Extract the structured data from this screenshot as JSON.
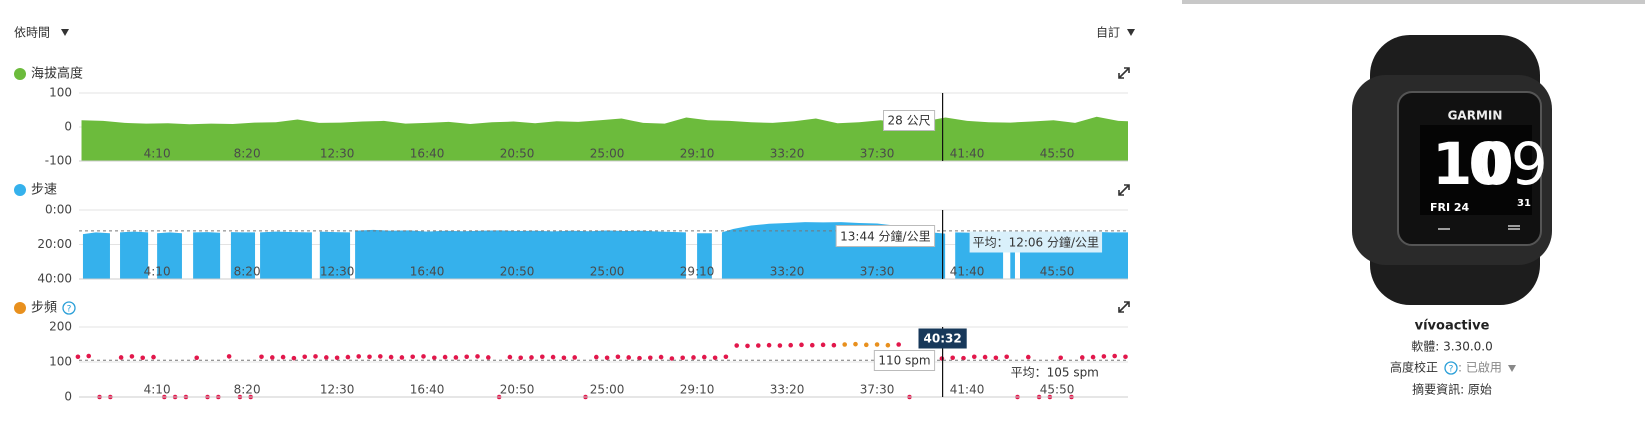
{
  "controls": {
    "sort": "依時間",
    "custom": "自訂"
  },
  "cursor": {
    "value": 2432,
    "label": "40:32"
  },
  "chart_data": [
    {
      "type": "area",
      "title": "海拔高度",
      "color": "#6cbb3c",
      "x": [
        40,
        100,
        160,
        220,
        280,
        340,
        400,
        460,
        520,
        580,
        640,
        700,
        760,
        820,
        880,
        940,
        1000,
        1060,
        1120,
        1180,
        1240,
        1300,
        1360,
        1420,
        1480,
        1540,
        1600,
        1660,
        1720,
        1780,
        1840,
        1900,
        1960,
        2020,
        2080,
        2140,
        2200,
        2260,
        2320,
        2380,
        2440,
        2500,
        2560,
        2620,
        2680,
        2740,
        2800,
        2860,
        2920,
        2947
      ],
      "values": [
        20,
        18,
        12,
        10,
        11,
        8,
        10,
        9,
        13,
        14,
        22,
        12,
        13,
        16,
        18,
        10,
        12,
        15,
        9,
        14,
        16,
        11,
        17,
        15,
        20,
        25,
        12,
        10,
        28,
        20,
        18,
        14,
        12,
        17,
        25,
        11,
        14,
        20,
        12,
        16,
        28,
        18,
        14,
        13,
        16,
        20,
        12,
        30,
        18,
        17
      ],
      "xlim": [
        33,
        2947
      ],
      "xticks": [
        {
          "value": 250,
          "label": "4:10"
        },
        {
          "value": 500,
          "label": "8:20"
        },
        {
          "value": 750,
          "label": "12:30"
        },
        {
          "value": 1000,
          "label": "16:40"
        },
        {
          "value": 1250,
          "label": "20:50"
        },
        {
          "value": 1500,
          "label": "25:00"
        },
        {
          "value": 1750,
          "label": "29:10"
        },
        {
          "value": 2000,
          "label": "33:20"
        },
        {
          "value": 2250,
          "label": "37:30"
        },
        {
          "value": 2500,
          "label": "41:40"
        },
        {
          "value": 2750,
          "label": "45:50"
        }
      ],
      "ylim": [
        -100,
        100
      ],
      "yticks": [
        -100,
        0,
        100
      ],
      "grid": true,
      "tooltip": "28 公尺"
    },
    {
      "type": "area",
      "title": "步速",
      "color": "#35b1ec",
      "y_reversed": true,
      "x": [
        44,
        80,
        119,
        133,
        147,
        185,
        225,
        238,
        250,
        285,
        319,
        335,
        350,
        390,
        425,
        440,
        455,
        490,
        522,
        529,
        536,
        580,
        630,
        680,
        690,
        702,
        745,
        786,
        793,
        800,
        850,
        900,
        950,
        1000,
        1050,
        1100,
        1150,
        1200,
        1250,
        1300,
        1350,
        1400,
        1450,
        1500,
        1550,
        1600,
        1650,
        1719,
        1735,
        1750,
        1791,
        1805,
        1819,
        1850,
        1900,
        1950,
        2000,
        2050,
        2100,
        2150,
        2200,
        2250,
        2300,
        2350,
        2400,
        2439,
        2453,
        2467,
        2520,
        2560,
        2600,
        2610,
        2620,
        2633,
        2640,
        2647,
        2700,
        2750,
        2800,
        2850,
        2900,
        2947
      ],
      "values": [
        14,
        13,
        13.5,
        null,
        13,
        12.5,
        13,
        null,
        13.5,
        13,
        13.5,
        null,
        13,
        12.8,
        13.2,
        null,
        12.8,
        13,
        13,
        null,
        13,
        12.5,
        12.8,
        13,
        null,
        12.5,
        12.8,
        13,
        null,
        12,
        11.5,
        12,
        11.8,
        12.5,
        12,
        12.3,
        12,
        11.8,
        12.2,
        12,
        12.4,
        12,
        12.3,
        11.9,
        12.2,
        12,
        12.5,
        13,
        null,
        13.5,
        13.5,
        null,
        13,
        11,
        9,
        8,
        7.5,
        7,
        7.2,
        7,
        7.5,
        7.8,
        9,
        11.5,
        13,
        13.7,
        null,
        13,
        13.2,
        13,
        13.4,
        null,
        15,
        15,
        null,
        13,
        13,
        12.8,
        13,
        12.7,
        13,
        13
      ],
      "xlim": [
        33,
        2947
      ],
      "xticks": [
        {
          "value": 250,
          "label": "4:10"
        },
        {
          "value": 500,
          "label": "8:20"
        },
        {
          "value": 750,
          "label": "12:30"
        },
        {
          "value": 1000,
          "label": "16:40"
        },
        {
          "value": 1250,
          "label": "20:50"
        },
        {
          "value": 1500,
          "label": "25:00"
        },
        {
          "value": 1750,
          "label": "29:10"
        },
        {
          "value": 2000,
          "label": "33:20"
        },
        {
          "value": 2250,
          "label": "37:30"
        },
        {
          "value": 2500,
          "label": "41:40"
        },
        {
          "value": 2750,
          "label": "45:50"
        }
      ],
      "ylim": [
        0,
        40
      ],
      "yticks": [
        {
          "value": 0,
          "label": "0:00"
        },
        {
          "value": 20,
          "label": "20:00"
        },
        {
          "value": 40,
          "label": "40:00"
        }
      ],
      "grid": true,
      "tooltip": "13:44 分鐘/公里",
      "average": {
        "value": 12.1,
        "label": "平均：12:06 分鐘/公里"
      }
    },
    {
      "type": "scatter",
      "title": "步頻",
      "color": "#e8901e",
      "series": [
        {
          "color": "#e2174b",
          "x": [
            30,
            60,
            90,
            120,
            150,
            180,
            210,
            240,
            270,
            300,
            330,
            360,
            390,
            420,
            450,
            480,
            510,
            540,
            570,
            600,
            630,
            660,
            690,
            720,
            750,
            780,
            810,
            840,
            870,
            900,
            930,
            960,
            990,
            1020,
            1050,
            1080,
            1110,
            1140,
            1170,
            1200,
            1230,
            1260,
            1290,
            1320,
            1350,
            1380,
            1410,
            1440,
            1470,
            1500,
            1530,
            1560,
            1590,
            1620,
            1650,
            1680,
            1710,
            1740,
            1770,
            1800,
            1830,
            1860,
            1890,
            1920,
            1950,
            1980,
            2010,
            2040,
            2070,
            2100,
            2130,
            2310,
            2340,
            2370,
            2400,
            2430,
            2460,
            2490,
            2520,
            2550,
            2580,
            2610,
            2640,
            2670,
            2700,
            2730,
            2760,
            2790,
            2820,
            2850,
            2880,
            2910,
            2940
          ],
          "values": [
            115,
            117,
            0,
            0,
            113,
            116,
            112,
            114,
            0,
            0,
            0,
            112,
            0,
            0,
            116,
            0,
            0,
            115,
            113,
            114,
            111,
            115,
            116,
            113,
            112,
            114,
            116,
            115,
            116,
            114,
            113,
            115,
            116,
            112,
            114,
            113,
            115,
            116,
            113,
            0,
            114,
            112,
            113,
            115,
            114,
            112,
            113,
            0,
            114,
            112,
            115,
            113,
            111,
            112,
            114,
            110,
            112,
            113,
            114,
            112,
            115,
            147,
            146,
            147,
            148,
            147,
            148,
            149,
            148,
            149,
            148,
            150,
            0,
            112,
            110,
            110,
            112,
            111,
            115,
            114,
            112,
            115,
            0,
            114,
            0,
            0,
            112,
            0,
            113,
            114,
            116,
            117,
            115
          ]
        },
        {
          "color": "#e8901e",
          "x": [
            2160,
            2190,
            2220,
            2250,
            2280
          ],
          "values": [
            150,
            151,
            149,
            150,
            148
          ]
        }
      ],
      "xlim": [
        33,
        2947
      ],
      "xticks": [
        {
          "value": 250,
          "label": "4:10"
        },
        {
          "value": 500,
          "label": "8:20"
        },
        {
          "value": 750,
          "label": "12:30"
        },
        {
          "value": 1000,
          "label": "16:40"
        },
        {
          "value": 1250,
          "label": "20:50"
        },
        {
          "value": 1500,
          "label": "25:00"
        },
        {
          "value": 1750,
          "label": "29:10"
        },
        {
          "value": 2000,
          "label": "33:20"
        },
        {
          "value": 2250,
          "label": "37:30"
        },
        {
          "value": 2500,
          "label": "41:40"
        },
        {
          "value": 2750,
          "label": "45:50"
        }
      ],
      "ylim": [
        0,
        200
      ],
      "yticks": [
        0,
        100,
        200
      ],
      "grid": true,
      "tooltip": "110 spm",
      "average": {
        "value": 105,
        "label": "平均：105 spm"
      }
    }
  ],
  "device": {
    "name": "vívoactive",
    "software": "軟體: 3.30.0.0",
    "altitude_label": "高度校正",
    "altitude_status": ": 已啟用",
    "summary": "摘要資訊: 原始",
    "watch": {
      "brand": "GARMIN",
      "hour": "10",
      "minute": "09",
      "date": "FRI 24",
      "day": "31"
    }
  }
}
